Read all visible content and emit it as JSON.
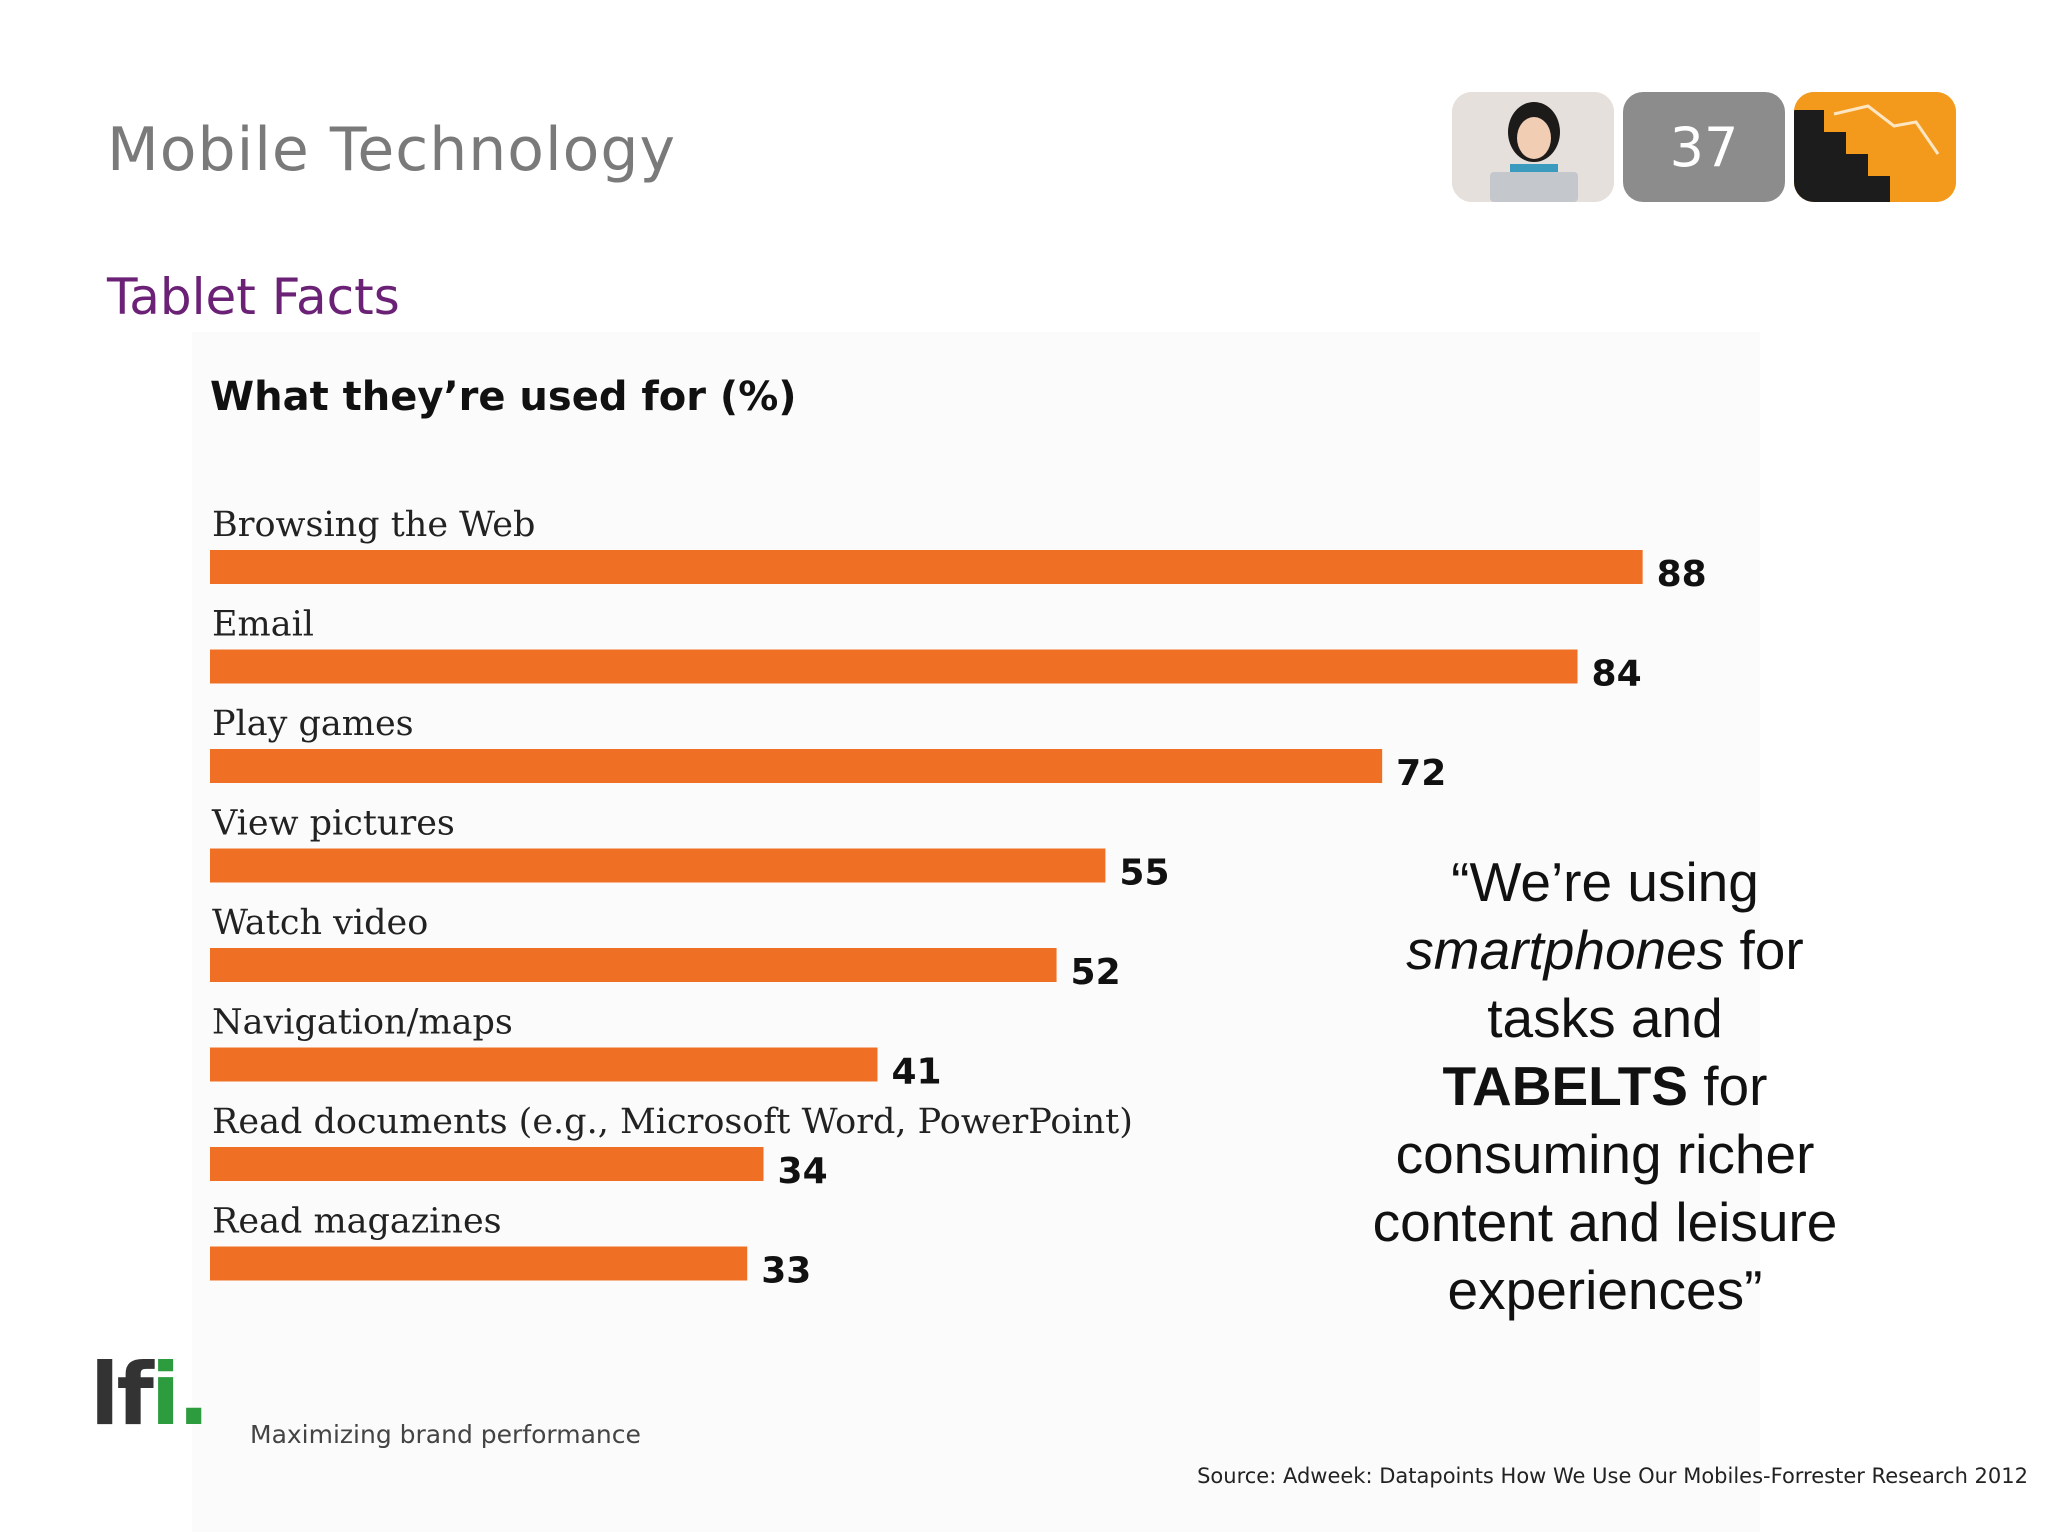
{
  "slide": {
    "title": "Mobile Technology",
    "subtitle": "Tablet Facts",
    "page_number": "37"
  },
  "quote": {
    "open": "“We’re using ",
    "italic": "smartphones",
    "mid": " for tasks and ",
    "bold": "TABELTS",
    "end": " for consuming richer content and leisure experiences”"
  },
  "logo": {
    "mark": "lf",
    "mark_accent": "i.",
    "tagline": "Maximizing brand performance"
  },
  "source": "Source: Adweek: Datapoints How We Use Our Mobiles-Forrester Research 2012",
  "colors": {
    "bar": "#ef7024",
    "title_gray": "#7a7a7a",
    "subtitle_purple": "#6b2176",
    "logo_green": "#2d9c3f"
  },
  "chart_data": {
    "type": "bar",
    "orientation": "horizontal",
    "title": "What they’re used for (%)",
    "categories": [
      "Browsing the Web",
      "Email",
      "Play games",
      "View pictures",
      "Watch video",
      "Navigation/maps",
      "Read documents (e.g., Microsoft Word, PowerPoint)",
      "Read magazines"
    ],
    "values": [
      88,
      84,
      72,
      55,
      52,
      41,
      34,
      33
    ],
    "xlim": [
      0,
      100
    ],
    "grid": false,
    "legend": "none",
    "data_labels": true
  }
}
